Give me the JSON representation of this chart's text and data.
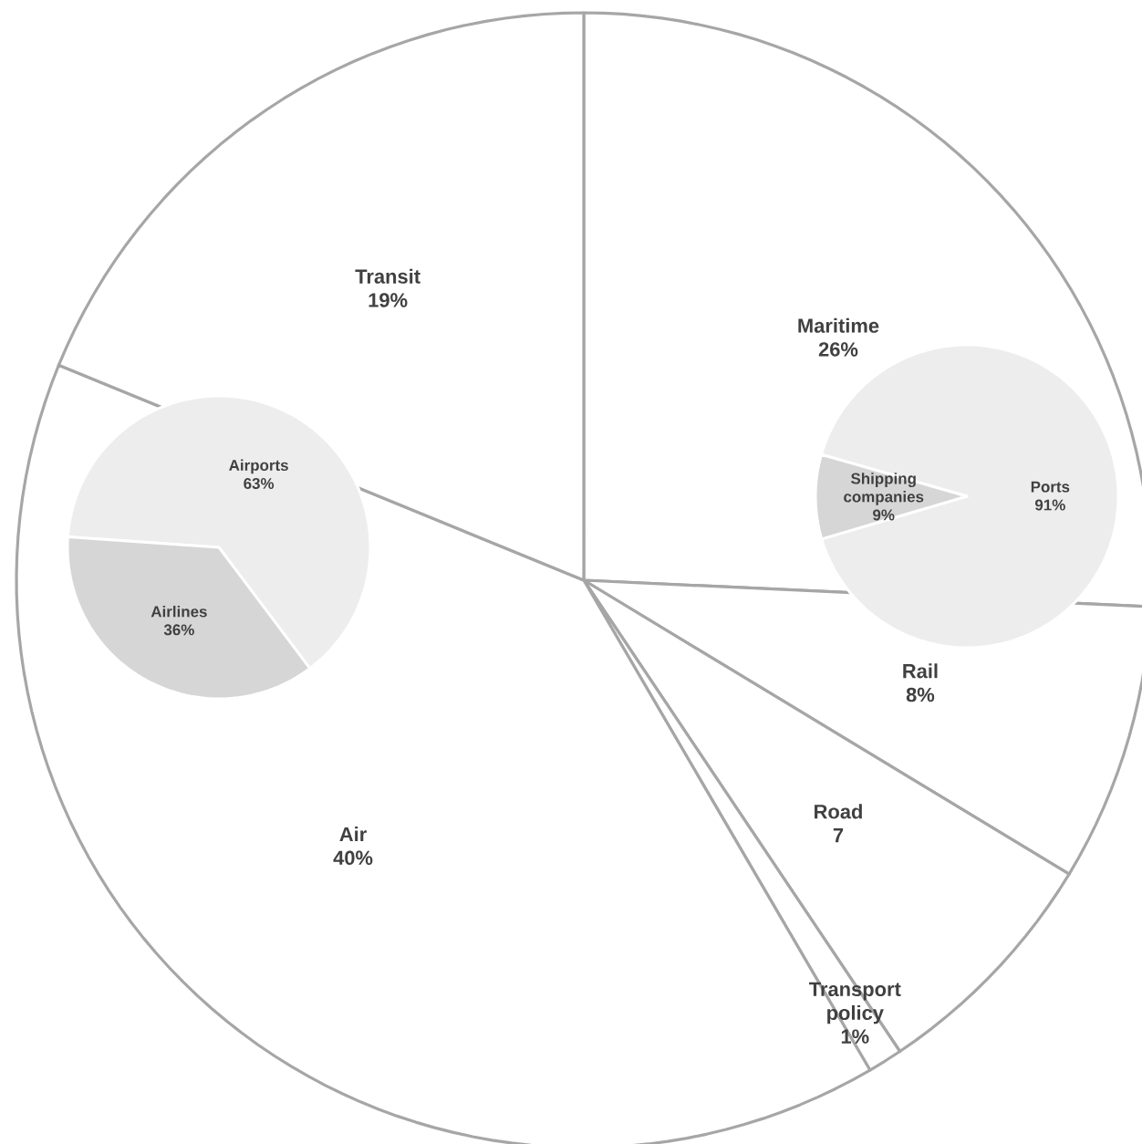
{
  "chart_data": [
    {
      "type": "pie",
      "categories": [
        "Maritime",
        "Rail",
        "Road",
        "Transport policy",
        "Air",
        "Transit"
      ],
      "values": [
        26,
        8,
        7,
        1,
        40,
        19
      ],
      "value_labels": [
        "26%",
        "8%",
        "7",
        "1%",
        "40%",
        "19%"
      ],
      "colors": [
        "#ffffff",
        "#ffffff",
        "#ffffff",
        "#ffffff",
        "#ffffff",
        "#ffffff"
      ]
    },
    {
      "type": "pie",
      "categories": [
        "Airports",
        "Airlines"
      ],
      "values": [
        63,
        36
      ],
      "value_labels": [
        "63%",
        "36%"
      ],
      "colors": [
        "#ededed",
        "#d6d6d6"
      ]
    },
    {
      "type": "pie",
      "categories": [
        "Ports",
        "Shipping companies"
      ],
      "values": [
        91,
        9
      ],
      "value_labels": [
        "91%",
        "9%"
      ],
      "colors": [
        "#ededed",
        "#d6d6d6"
      ]
    }
  ]
}
